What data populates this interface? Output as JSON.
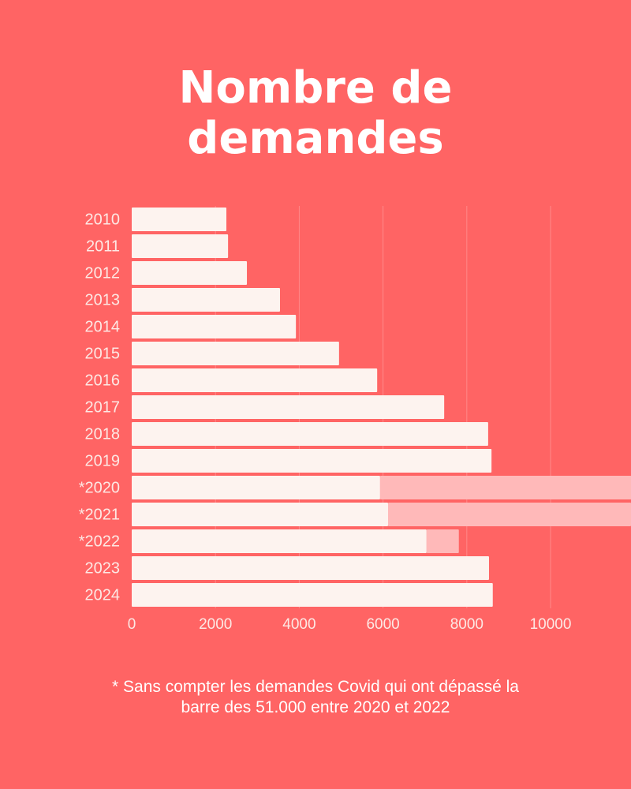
{
  "chart_data": {
    "type": "hbar_stacked",
    "title": "Nombre de demandes",
    "footnote": "* Sans compter les demandes Covid qui ont dépassé la barre des 51.000 entre 2020 et 2022",
    "categories": [
      "2010",
      "2011",
      "2012",
      "2013",
      "2014",
      "2015",
      "2016",
      "2017",
      "2018",
      "2019",
      "*2020",
      "*2021",
      "*2022",
      "2023",
      "2024"
    ],
    "series": [
      {
        "color": "#fdf3ef",
        "values": [
          2260,
          2300,
          2750,
          3540,
          3920,
          4950,
          5860,
          7460,
          8510,
          8590,
          5930,
          6120,
          7040,
          8530,
          8620
        ]
      },
      {
        "color": "#ffb9b9",
        "values": [
          null,
          null,
          null,
          null,
          null,
          null,
          null,
          null,
          null,
          null,
          6000,
          5800,
          770,
          null,
          null
        ]
      }
    ],
    "xlim": [
      0,
      11920
    ],
    "xticks": [
      0,
      2000,
      4000,
      6000,
      8000,
      10000
    ],
    "grid": true
  }
}
